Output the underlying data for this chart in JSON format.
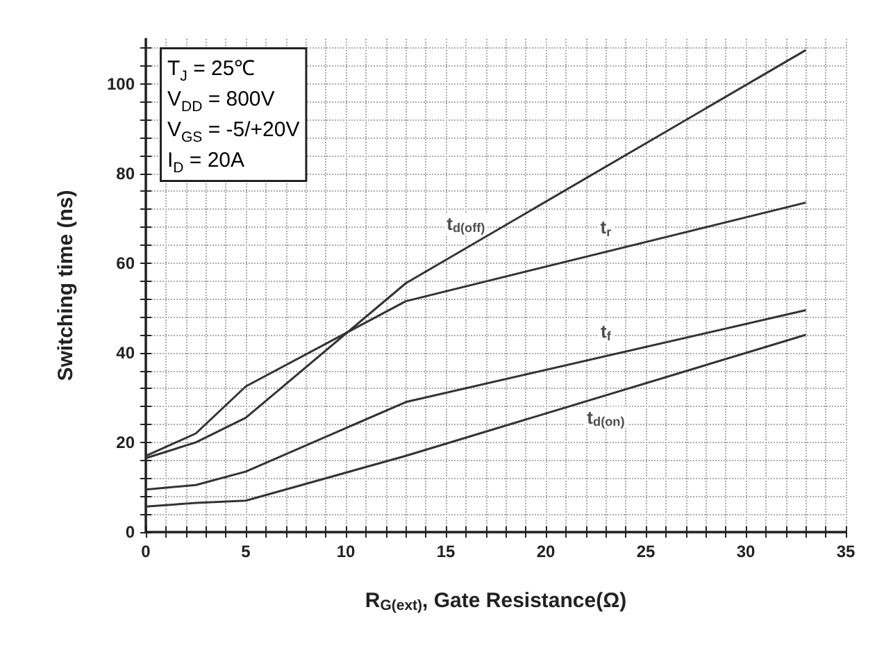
{
  "chart_data": {
    "type": "line",
    "xlabel": "R$_{G(ext)}$, Gate Resistance(Ω)",
    "ylabel": "Switching time (ns)",
    "xlim": [
      0,
      35
    ],
    "xticks": [
      0,
      5,
      10,
      15,
      20,
      25,
      30,
      35
    ],
    "ylim": [
      0,
      110
    ],
    "yticks": [
      0,
      20,
      40,
      60,
      80,
      100
    ],
    "grid": true,
    "marker": "none",
    "line_style": "solid",
    "series": [
      {
        "name": "t$_{d(off)}$",
        "color": "#333333",
        "x": [
          0,
          2.5,
          5,
          13,
          33
        ],
        "values": [
          16.5,
          20,
          25.5,
          55.5,
          107.5
        ]
      },
      {
        "name": "t$_{r}$",
        "color": "#333333",
        "x": [
          0,
          2.5,
          5,
          13,
          33
        ],
        "values": [
          17,
          22,
          32.5,
          51.5,
          73.5
        ]
      },
      {
        "name": "t$_{f}$",
        "color": "#333333",
        "x": [
          0,
          2.5,
          5,
          13,
          33
        ],
        "values": [
          9.5,
          10.5,
          13.5,
          29,
          49.5
        ]
      },
      {
        "name": "t$_{d(on)}$",
        "color": "#333333",
        "x": [
          0,
          2.5,
          5,
          13,
          33
        ],
        "values": [
          5.7,
          6.5,
          7,
          17,
          44
        ]
      }
    ],
    "annotations": [
      "T$_{J}$ = 25℃\nV$_{DD}$ = 800V\nV$_{GS}$ = -5/+20V\nI$_{D}$ = 20A"
    ]
  }
}
